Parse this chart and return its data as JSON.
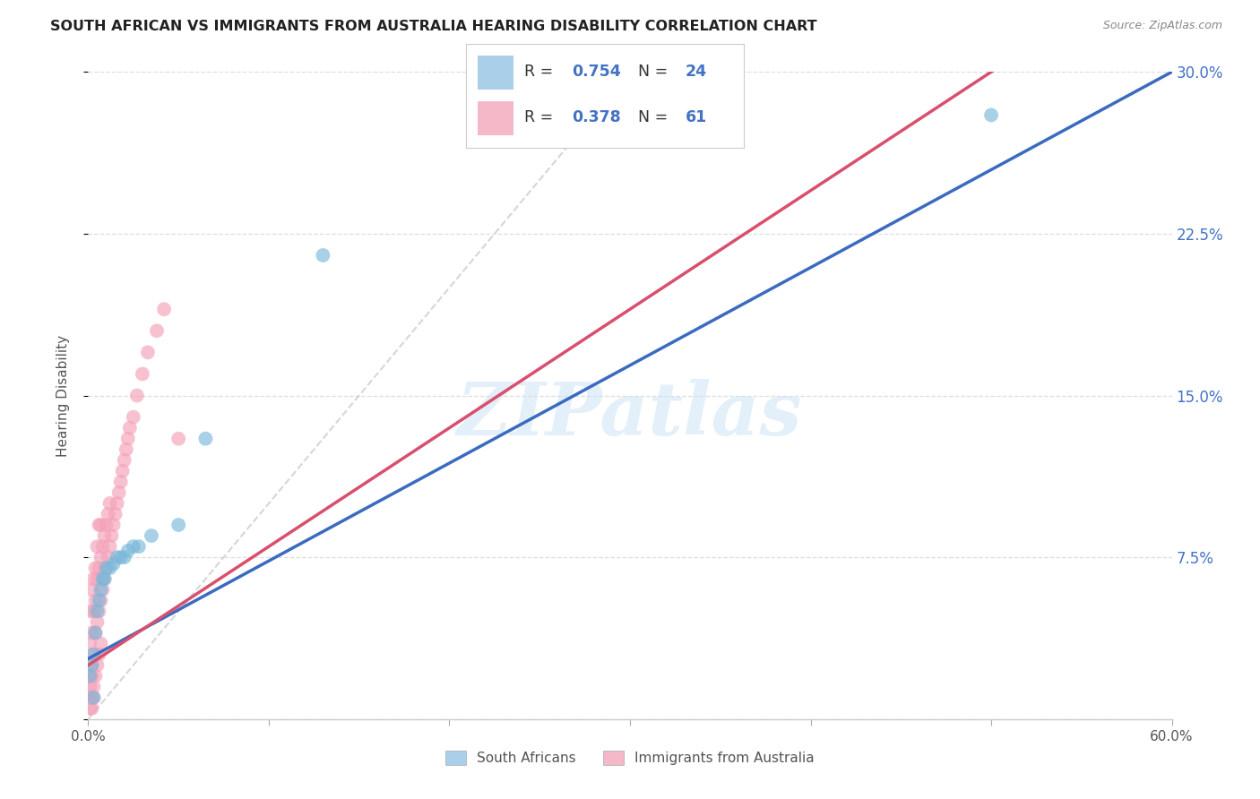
{
  "title": "SOUTH AFRICAN VS IMMIGRANTS FROM AUSTRALIA HEARING DISABILITY CORRELATION CHART",
  "source": "Source: ZipAtlas.com",
  "ylabel": "Hearing Disability",
  "xlim": [
    0.0,
    0.6
  ],
  "ylim": [
    0.0,
    0.3
  ],
  "yticks": [
    0.0,
    0.075,
    0.15,
    0.225,
    0.3
  ],
  "ytick_labels": [
    "",
    "7.5%",
    "15.0%",
    "22.5%",
    "30.0%"
  ],
  "xticks": [
    0.0,
    0.1,
    0.2,
    0.3,
    0.4,
    0.5,
    0.6
  ],
  "xtick_labels": [
    "0.0%",
    "",
    "",
    "",
    "",
    "",
    "60.0%"
  ],
  "sa_color": "#7ab8d9",
  "imm_color": "#f4a0b8",
  "sa_line_color": "#3a6bbf",
  "imm_line_color": "#d94f6e",
  "diagonal_color": "#cccccc",
  "legend_sa_color": "#aacfe8",
  "legend_imm_color": "#f4b8c8",
  "sa_R": "0.754",
  "sa_N": "24",
  "imm_R": "0.378",
  "imm_N": "61",
  "sa_scatter_x": [
    0.001,
    0.002,
    0.003,
    0.004,
    0.005,
    0.006,
    0.007,
    0.008,
    0.009,
    0.01,
    0.011,
    0.012,
    0.014,
    0.016,
    0.018,
    0.02,
    0.022,
    0.025,
    0.028,
    0.035,
    0.05,
    0.065,
    0.13,
    0.5
  ],
  "sa_scatter_y": [
    0.02,
    0.025,
    0.03,
    0.035,
    0.04,
    0.05,
    0.055,
    0.055,
    0.06,
    0.06,
    0.065,
    0.065,
    0.07,
    0.07,
    0.075,
    0.075,
    0.075,
    0.08,
    0.08,
    0.085,
    0.09,
    0.13,
    0.215,
    0.28
  ],
  "imm_scatter_x": [
    0.001,
    0.001,
    0.002,
    0.002,
    0.003,
    0.003,
    0.004,
    0.004,
    0.005,
    0.005,
    0.006,
    0.006,
    0.007,
    0.007,
    0.008,
    0.008,
    0.009,
    0.009,
    0.01,
    0.01,
    0.011,
    0.011,
    0.012,
    0.013,
    0.014,
    0.015,
    0.016,
    0.017,
    0.018,
    0.019,
    0.02,
    0.021,
    0.022,
    0.023,
    0.024,
    0.025,
    0.027,
    0.029,
    0.03,
    0.032,
    0.035,
    0.038,
    0.04,
    0.043,
    0.046,
    0.05,
    0.055,
    0.065,
    0.01,
    0.011,
    0.012,
    0.013,
    0.002,
    0.003,
    0.014,
    0.015,
    0.016,
    0.001,
    0.002,
    0.006,
    0.007
  ],
  "imm_scatter_y": [
    0.02,
    0.03,
    0.035,
    0.05,
    0.04,
    0.055,
    0.045,
    0.06,
    0.05,
    0.07,
    0.055,
    0.075,
    0.06,
    0.08,
    0.065,
    0.08,
    0.07,
    0.085,
    0.07,
    0.09,
    0.075,
    0.09,
    0.08,
    0.085,
    0.09,
    0.09,
    0.095,
    0.1,
    0.1,
    0.105,
    0.1,
    0.11,
    0.105,
    0.11,
    0.115,
    0.115,
    0.12,
    0.125,
    0.13,
    0.135,
    0.14,
    0.145,
    0.15,
    0.155,
    0.16,
    0.165,
    0.17,
    0.13,
    0.025,
    0.03,
    0.035,
    0.04,
    0.01,
    0.015,
    0.02,
    0.025,
    0.035,
    0.005,
    0.005,
    0.01,
    0.015
  ],
  "watermark_text": "ZIPatlas",
  "bottom_legend_sa": "South Africans",
  "bottom_legend_imm": "Immigrants from Australia",
  "background_color": "#ffffff",
  "grid_color": "#dddddd",
  "stat_color": "#4472c4",
  "label_color": "#555555"
}
